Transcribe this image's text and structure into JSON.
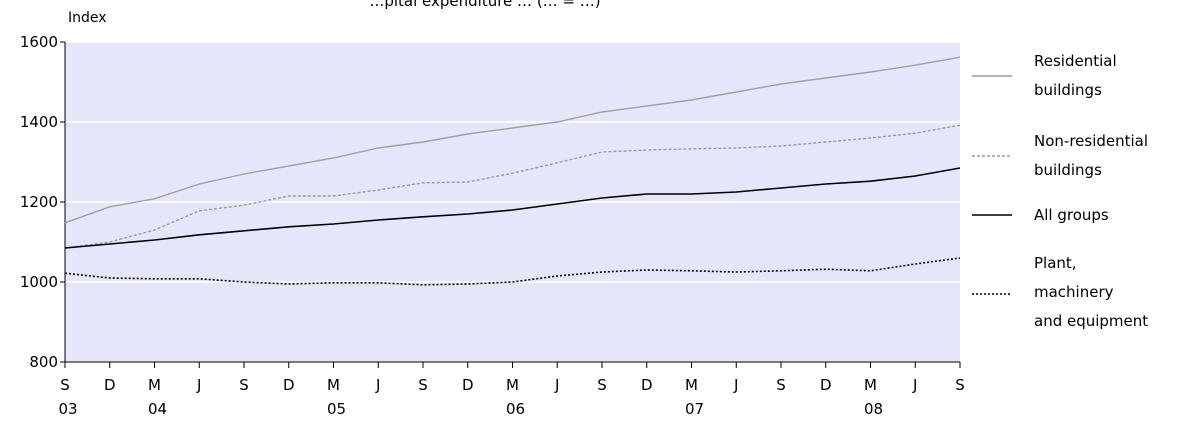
{
  "chart_data": {
    "type": "line",
    "title": "…pital expenditure … (… = …)",
    "ylabel": "Index",
    "xlabel": "",
    "ylim": [
      800,
      1600
    ],
    "yticks": [
      800,
      1000,
      1200,
      1400,
      1600
    ],
    "grid": true,
    "legend_position": "right",
    "x_months": [
      "S",
      "D",
      "M",
      "J",
      "S",
      "D",
      "M",
      "J",
      "S",
      "D",
      "M",
      "J",
      "S",
      "D",
      "M",
      "J",
      "S",
      "D",
      "M",
      "J",
      "S"
    ],
    "x_years": [
      {
        "label": "03",
        "at": 0
      },
      {
        "label": "04",
        "at": 2
      },
      {
        "label": "05",
        "at": 6
      },
      {
        "label": "06",
        "at": 10
      },
      {
        "label": "07",
        "at": 14
      },
      {
        "label": "08",
        "at": 18
      }
    ],
    "series": [
      {
        "name": "Residential buildings",
        "color": "#a0a0a0",
        "dash": "solid",
        "values": [
          1148,
          1188,
          1208,
          1245,
          1270,
          1290,
          1310,
          1335,
          1350,
          1370,
          1385,
          1400,
          1425,
          1440,
          1455,
          1475,
          1495,
          1510,
          1525,
          1542,
          1562
        ]
      },
      {
        "name": "Non-residential buildings",
        "color": "#9a9a9a",
        "dash": "dashed",
        "values": [
          1085,
          1100,
          1130,
          1178,
          1192,
          1215,
          1215,
          1230,
          1248,
          1250,
          1272,
          1298,
          1325,
          1330,
          1333,
          1335,
          1340,
          1350,
          1360,
          1372,
          1392
        ]
      },
      {
        "name": "All groups",
        "color": "#000000",
        "dash": "solid",
        "values": [
          1085,
          1095,
          1105,
          1118,
          1128,
          1138,
          1145,
          1155,
          1163,
          1170,
          1180,
          1195,
          1210,
          1220,
          1220,
          1225,
          1235,
          1245,
          1252,
          1265,
          1285
        ]
      },
      {
        "name": "Plant, machinery and equipment",
        "color": "#000000",
        "dash": "dotted",
        "values": [
          1022,
          1010,
          1008,
          1008,
          1000,
          995,
          998,
          998,
          993,
          995,
          1000,
          1015,
          1025,
          1030,
          1028,
          1025,
          1028,
          1032,
          1028,
          1045,
          1060
        ]
      }
    ]
  },
  "legend": [
    {
      "lines": [
        "Residential",
        "buildings"
      ]
    },
    {
      "lines": [
        "Non-residential",
        "buildings"
      ]
    },
    {
      "lines": [
        "All groups"
      ]
    },
    {
      "lines": [
        "Plant,",
        "machinery",
        "and equipment"
      ]
    }
  ]
}
